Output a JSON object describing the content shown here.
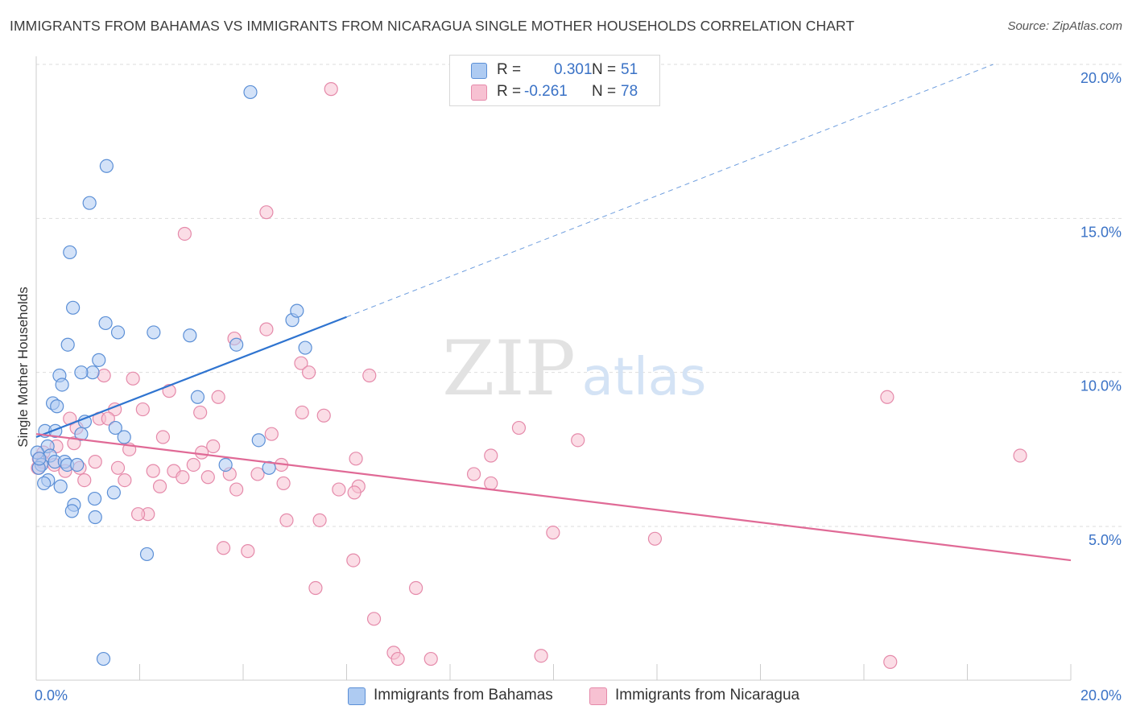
{
  "title": "IMMIGRANTS FROM BAHAMAS VS IMMIGRANTS FROM NICARAGUA SINGLE MOTHER HOUSEHOLDS CORRELATION CHART",
  "source": "Source: ZipAtlas.com",
  "watermark": {
    "zip": "ZIP",
    "atlas": "atlas"
  },
  "legend": {
    "bahamas": {
      "r_label": "R =",
      "r_value": "0.301",
      "n_label": "N =",
      "n_value": "51"
    },
    "nicaragua": {
      "r_label": "R =",
      "r_value": "-0.261",
      "n_label": "N =",
      "n_value": "78"
    }
  },
  "bottom_legend": {
    "bahamas": "Immigrants from Bahamas",
    "nicaragua": "Immigrants from Nicaragua"
  },
  "colors": {
    "bahamas_fill": "#aecbf2",
    "bahamas_stroke": "#5b8fd6",
    "bahamas_line": "#2f74d0",
    "nicaragua_fill": "#f7c1d2",
    "nicaragua_stroke": "#e58aaa",
    "nicaragua_line": "#e06a96",
    "tick_label": "#3a72c6",
    "grid": "#dddddd"
  },
  "chart_data": {
    "type": "scatter",
    "title": "IMMIGRANTS FROM BAHAMAS VS IMMIGRANTS FROM NICARAGUA SINGLE MOTHER HOUSEHOLDS CORRELATION CHART",
    "xlabel": "",
    "ylabel": "Single Mother Households",
    "xlim": [
      0,
      20
    ],
    "ylim": [
      0,
      20.5
    ],
    "x_tick_labels": [
      "0.0%",
      "20.0%"
    ],
    "y_ticks": [
      5,
      10,
      15,
      20
    ],
    "y_tick_labels": [
      "5.0%",
      "10.0%",
      "15.0%",
      "20.0%"
    ],
    "grid": true,
    "series": [
      {
        "name": "Immigrants from Bahamas",
        "points": [
          [
            4.14,
            19.1
          ],
          [
            1.36,
            16.7
          ],
          [
            1.03,
            15.5
          ],
          [
            0.65,
            13.9
          ],
          [
            0.71,
            12.1
          ],
          [
            1.34,
            11.6
          ],
          [
            1.58,
            11.3
          ],
          [
            2.27,
            11.3
          ],
          [
            2.97,
            11.2
          ],
          [
            4.95,
            11.7
          ],
          [
            5.04,
            12.0
          ],
          [
            0.61,
            10.9
          ],
          [
            3.87,
            10.9
          ],
          [
            5.2,
            10.8
          ],
          [
            1.21,
            10.4
          ],
          [
            1.09,
            10.0
          ],
          [
            0.87,
            10.0
          ],
          [
            0.45,
            9.9
          ],
          [
            0.5,
            9.6
          ],
          [
            3.12,
            9.2
          ],
          [
            0.32,
            9.0
          ],
          [
            0.4,
            8.9
          ],
          [
            0.94,
            8.4
          ],
          [
            1.53,
            8.2
          ],
          [
            0.17,
            8.1
          ],
          [
            0.37,
            8.1
          ],
          [
            0.87,
            8.0
          ],
          [
            1.7,
            7.9
          ],
          [
            4.3,
            7.8
          ],
          [
            0.22,
            7.6
          ],
          [
            0.02,
            7.4
          ],
          [
            0.27,
            7.3
          ],
          [
            0.36,
            7.1
          ],
          [
            0.55,
            7.1
          ],
          [
            0.6,
            7.0
          ],
          [
            0.1,
            7.0
          ],
          [
            0.79,
            7.0
          ],
          [
            3.66,
            7.0
          ],
          [
            4.5,
            6.9
          ],
          [
            0.05,
            6.9
          ],
          [
            0.23,
            6.5
          ],
          [
            0.15,
            6.4
          ],
          [
            0.47,
            6.3
          ],
          [
            1.5,
            6.1
          ],
          [
            1.13,
            5.9
          ],
          [
            0.73,
            5.7
          ],
          [
            0.69,
            5.5
          ],
          [
            1.14,
            5.3
          ],
          [
            2.14,
            4.1
          ],
          [
            1.3,
            0.7
          ],
          [
            0.06,
            7.2
          ]
        ]
      },
      {
        "name": "Immigrants from Nicaragua",
        "points": [
          [
            5.7,
            19.2
          ],
          [
            4.45,
            15.2
          ],
          [
            2.87,
            14.5
          ],
          [
            4.45,
            11.4
          ],
          [
            3.83,
            11.1
          ],
          [
            5.12,
            10.3
          ],
          [
            5.27,
            10.0
          ],
          [
            6.44,
            9.9
          ],
          [
            1.31,
            9.9
          ],
          [
            1.87,
            9.8
          ],
          [
            2.57,
            9.4
          ],
          [
            3.52,
            9.2
          ],
          [
            1.52,
            8.8
          ],
          [
            2.06,
            8.8
          ],
          [
            3.17,
            8.7
          ],
          [
            5.14,
            8.7
          ],
          [
            5.56,
            8.6
          ],
          [
            0.65,
            8.5
          ],
          [
            1.22,
            8.5
          ],
          [
            1.39,
            8.5
          ],
          [
            0.78,
            8.2
          ],
          [
            9.33,
            8.2
          ],
          [
            2.45,
            7.9
          ],
          [
            10.47,
            7.8
          ],
          [
            4.55,
            8.0
          ],
          [
            0.73,
            7.7
          ],
          [
            3.42,
            7.6
          ],
          [
            0.39,
            7.6
          ],
          [
            1.8,
            7.5
          ],
          [
            0.14,
            7.4
          ],
          [
            3.2,
            7.4
          ],
          [
            0.35,
            7.0
          ],
          [
            1.14,
            7.1
          ],
          [
            6.18,
            7.2
          ],
          [
            8.79,
            7.3
          ],
          [
            0.84,
            6.9
          ],
          [
            1.58,
            6.9
          ],
          [
            3.04,
            7.0
          ],
          [
            4.74,
            7.0
          ],
          [
            2.26,
            6.8
          ],
          [
            2.66,
            6.8
          ],
          [
            3.74,
            6.7
          ],
          [
            4.28,
            6.7
          ],
          [
            2.83,
            6.6
          ],
          [
            3.32,
            6.6
          ],
          [
            8.46,
            6.7
          ],
          [
            0.03,
            6.9
          ],
          [
            0.12,
            7.1
          ],
          [
            0.56,
            6.8
          ],
          [
            1.71,
            6.5
          ],
          [
            4.78,
            6.4
          ],
          [
            6.23,
            6.3
          ],
          [
            8.79,
            6.4
          ],
          [
            2.39,
            6.3
          ],
          [
            3.87,
            6.2
          ],
          [
            5.85,
            6.2
          ],
          [
            6.15,
            6.1
          ],
          [
            0.93,
            6.5
          ],
          [
            2.16,
            5.4
          ],
          [
            1.97,
            5.4
          ],
          [
            4.84,
            5.2
          ],
          [
            5.48,
            5.2
          ],
          [
            9.99,
            4.8
          ],
          [
            11.96,
            4.6
          ],
          [
            3.62,
            4.3
          ],
          [
            4.09,
            4.2
          ],
          [
            6.13,
            3.9
          ],
          [
            5.4,
            3.0
          ],
          [
            7.34,
            3.0
          ],
          [
            6.53,
            2.0
          ],
          [
            6.91,
            0.9
          ],
          [
            7.63,
            0.7
          ],
          [
            6.99,
            0.7
          ],
          [
            9.76,
            0.8
          ],
          [
            16.51,
            0.6
          ],
          [
            16.45,
            9.2
          ],
          [
            19.02,
            7.3
          ],
          [
            0.05,
            7.2
          ]
        ]
      }
    ],
    "trend_lines": [
      {
        "series": "Immigrants from Bahamas",
        "solid": [
          [
            0.0,
            7.9
          ],
          [
            6.0,
            11.8
          ]
        ],
        "dashed": [
          [
            6.0,
            11.8
          ],
          [
            18.5,
            20.0
          ]
        ]
      },
      {
        "series": "Immigrants from Nicaragua",
        "solid": [
          [
            0.0,
            8.0
          ],
          [
            20.0,
            3.9
          ]
        ]
      }
    ]
  }
}
